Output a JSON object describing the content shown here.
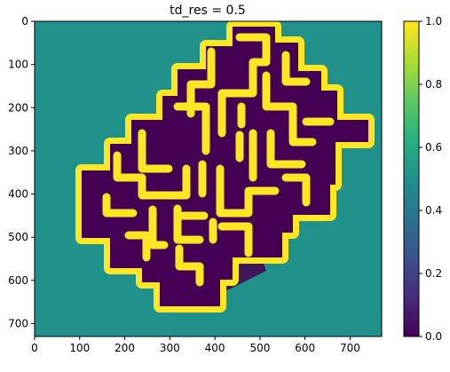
{
  "chart_data": {
    "type": "heatmap",
    "title": "td_res = 0.5",
    "xlabel": "",
    "ylabel": "",
    "xlim": [
      0,
      770
    ],
    "ylim": [
      730,
      0
    ],
    "x_ticks": [
      0,
      100,
      200,
      300,
      400,
      500,
      600,
      700
    ],
    "y_ticks": [
      0,
      100,
      200,
      300,
      400,
      500,
      600,
      700
    ],
    "grid": false,
    "colormap": "viridis",
    "colorbar": {
      "range": [
        0.0,
        1.0
      ],
      "ticks": [
        "0.0",
        "0.2",
        "0.4",
        "0.6",
        "0.8",
        "1.0"
      ]
    },
    "region_values": {
      "background": 0.5,
      "free_space": 0.0,
      "boundary": 1.0
    },
    "colors": {
      "background": "#21918c",
      "free_space": "#440154",
      "boundary": "#fde725"
    }
  }
}
